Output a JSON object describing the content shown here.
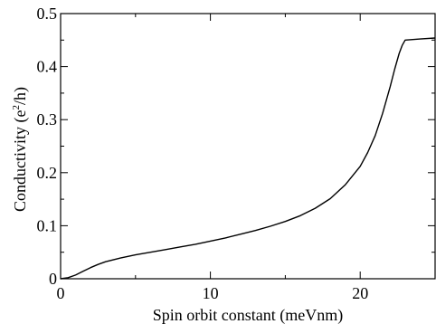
{
  "chart_data": {
    "type": "line",
    "xlabel": "Spin orbit constant (meVnm)",
    "ylabel": {
      "prefix": "Conductivity (e",
      "superscript": "2",
      "suffix": "/h)"
    },
    "xlim": [
      0,
      25
    ],
    "ylim": [
      0,
      0.5
    ],
    "x_ticks": [
      0,
      10,
      20
    ],
    "x_tick_labels": [
      "0",
      "10",
      "20"
    ],
    "y_ticks": [
      0,
      0.1,
      0.2,
      0.3,
      0.4,
      0.5
    ],
    "y_tick_labels": [
      "0",
      "0.1",
      "0.2",
      "0.3",
      "0.4",
      "0.5"
    ],
    "grid": false,
    "series": [
      {
        "color": "#000000",
        "x": [
          0,
          0.5,
          1,
          1.5,
          2,
          2.5,
          3,
          4,
          5,
          6,
          7,
          8,
          9,
          10,
          11,
          12,
          13,
          14,
          15,
          16,
          17,
          18,
          19,
          20,
          20.5,
          21,
          21.5,
          22,
          22.3,
          22.6,
          22.8,
          23,
          24,
          25
        ],
        "y": [
          0,
          0.002,
          0.007,
          0.014,
          0.021,
          0.027,
          0.032,
          0.039,
          0.045,
          0.05,
          0.055,
          0.06,
          0.065,
          0.071,
          0.077,
          0.084,
          0.091,
          0.099,
          0.108,
          0.119,
          0.133,
          0.151,
          0.177,
          0.212,
          0.238,
          0.27,
          0.312,
          0.362,
          0.395,
          0.425,
          0.44,
          0.45,
          0.452,
          0.454
        ]
      }
    ]
  }
}
